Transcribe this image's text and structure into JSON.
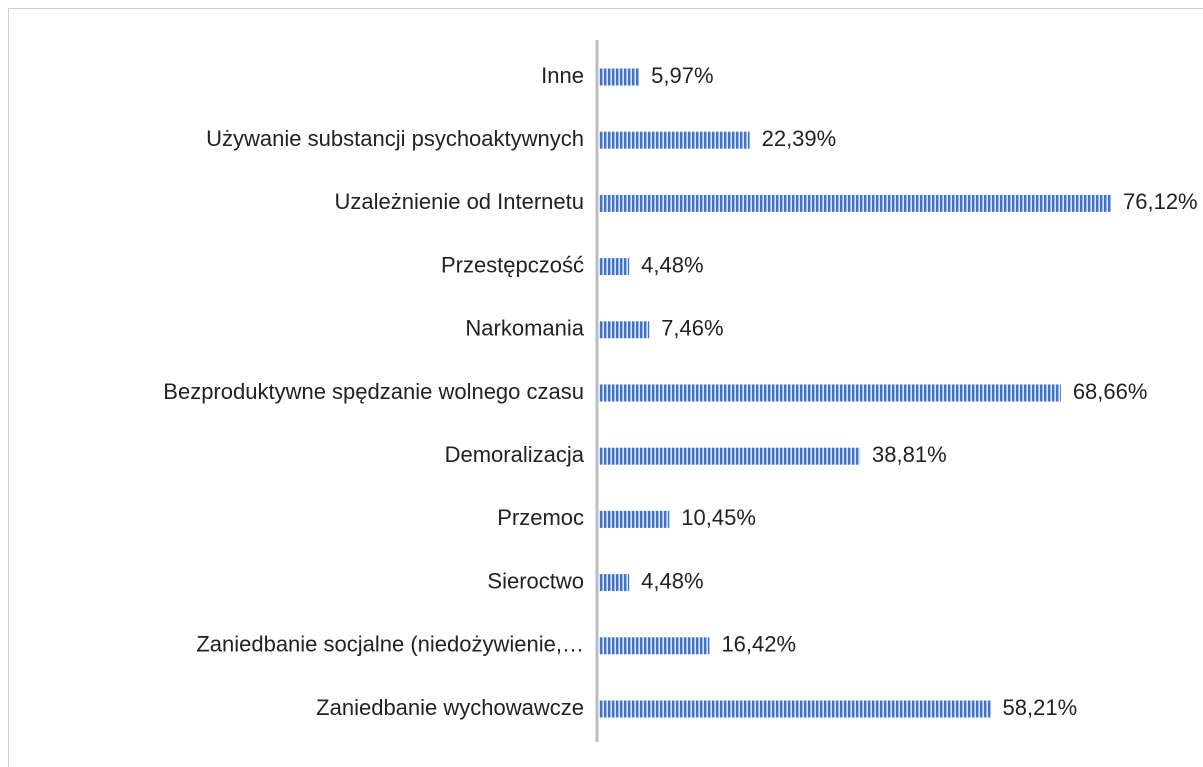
{
  "chart_data": {
    "type": "bar",
    "orientation": "horizontal",
    "categories": [
      "Inne",
      "Używanie substancji psychoaktywnych",
      "Uzależnienie od Internetu",
      "Przestępczość",
      "Narkomania",
      "Bezproduktywne spędzanie wolnego czasu",
      "Demoralizacja",
      "Przemoc",
      "Sieroctwo",
      "Zaniedbanie socjalne (niedożywienie,…",
      "Zaniedbanie wychowawcze"
    ],
    "values": [
      5.97,
      22.39,
      76.12,
      4.48,
      7.46,
      68.66,
      38.81,
      10.45,
      4.48,
      16.42,
      58.21
    ],
    "value_labels": [
      "5,97%",
      "22,39%",
      "76,12%",
      "4,48%",
      "7,46%",
      "68,66%",
      "38,81%",
      "10,45%",
      "4,48%",
      "16,42%",
      "58,21%"
    ],
    "color": "#4472c4"
  }
}
